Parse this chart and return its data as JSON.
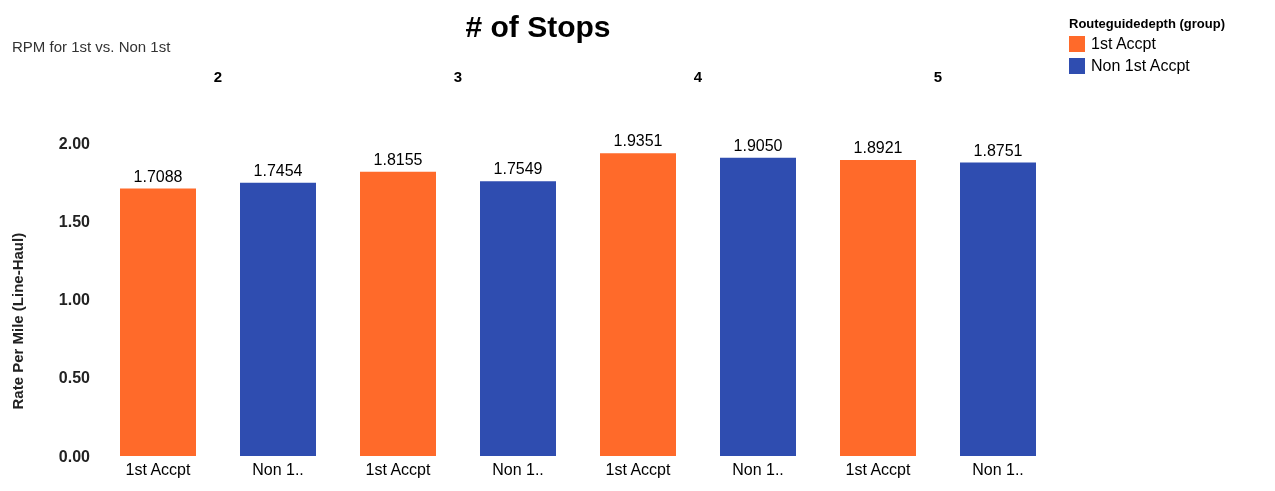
{
  "chart_data": {
    "type": "bar",
    "title": "# of Stops",
    "subtitle": "RPM for 1st vs. Non 1st",
    "ylabel": "Rate Per Mile (Line-Haul)",
    "legend_title": "Routeguidedepth (group)",
    "annotations": [
      "2",
      "3",
      "4",
      "5"
    ],
    "categories": [
      "1st Accpt",
      "Non 1..",
      "1st Accpt",
      "Non 1..",
      "1st Accpt",
      "Non 1..",
      "1st Accpt",
      "Non 1.."
    ],
    "series": [
      {
        "name": "1st Accpt",
        "color": "#ff6a2a",
        "values": [
          1.7088,
          null,
          1.8155,
          null,
          1.9351,
          null,
          1.8921,
          null
        ],
        "value_labels": [
          "1.7088",
          null,
          "1.8155",
          null,
          "1.9351",
          null,
          "1.8921",
          null
        ]
      },
      {
        "name": "Non 1st Accpt",
        "color": "#2f4db0",
        "values": [
          null,
          1.7454,
          null,
          1.7549,
          null,
          1.905,
          null,
          1.8751
        ],
        "value_labels": [
          null,
          "1.7454",
          null,
          "1.7549",
          null,
          "1.9050",
          null,
          "1.8751"
        ]
      }
    ],
    "ylim": [
      0,
      2
    ],
    "yticks": [
      {
        "value": 0,
        "label": "0.00"
      },
      {
        "value": 0.5,
        "label": "0.50"
      },
      {
        "value": 1,
        "label": "1.00"
      },
      {
        "value": 1.5,
        "label": "1.50"
      },
      {
        "value": 2,
        "label": "2.00"
      }
    ],
    "grid": false,
    "legend": "top right"
  }
}
